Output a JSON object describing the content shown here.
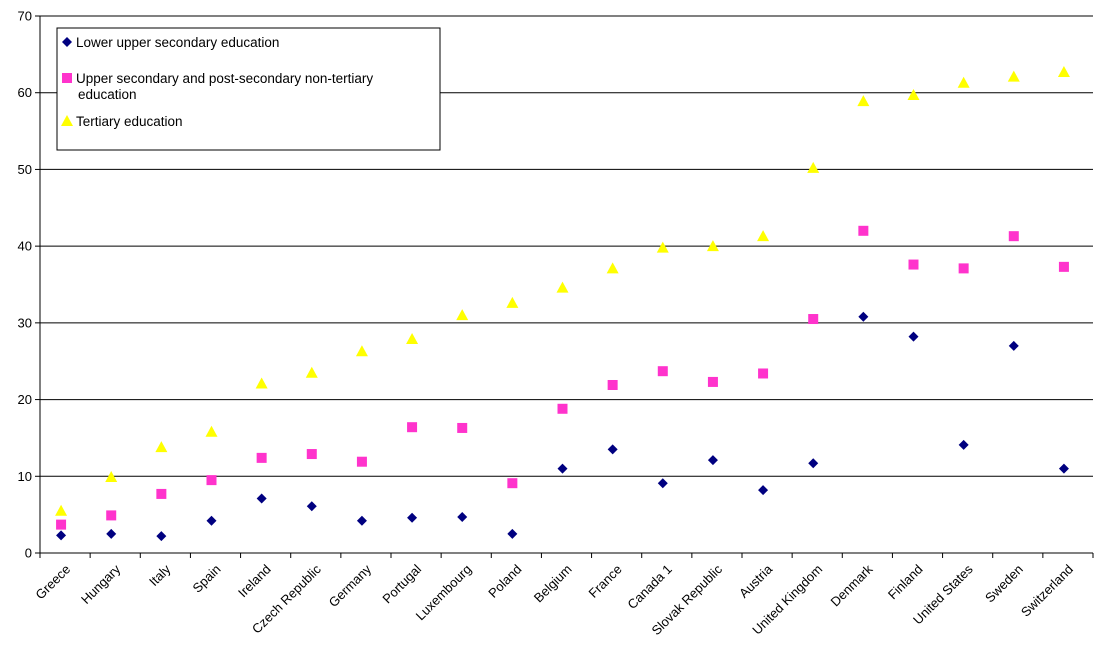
{
  "chart_data": {
    "type": "scatter",
    "title": "",
    "xlabel": "",
    "ylabel": "",
    "ylim": [
      0,
      70
    ],
    "yticks": [
      0,
      10,
      20,
      30,
      40,
      50,
      60,
      70
    ],
    "grid": "horizontal",
    "legend_position": "top-left",
    "categories": [
      "Greece",
      "Hungary",
      "Italy",
      "Spain",
      "Ireland",
      "Czech Republic",
      "Germany",
      "Portugal",
      "Luxembourg",
      "Poland",
      "Belgium",
      "France",
      "Canada 1",
      "Slovak Republic",
      "Austria",
      "United Kingdom",
      "Denmark",
      "Finland",
      "United States",
      "Sweden",
      "Switzerland"
    ],
    "series": [
      {
        "name": "Lower upper secondary education",
        "legend_lines": [
          "Lower upper secondary education"
        ],
        "marker": "diamond",
        "color": "#000080",
        "values": [
          2.3,
          2.5,
          2.2,
          4.2,
          7.1,
          6.1,
          4.2,
          4.6,
          4.7,
          2.5,
          11.0,
          13.5,
          9.1,
          12.1,
          8.2,
          11.7,
          30.8,
          28.2,
          14.1,
          27.0,
          11.0
        ]
      },
      {
        "name": "Upper secondary and post-secondary non-tertiary education",
        "legend_lines": [
          "Upper secondary and post-secondary non-tertiary",
          "education"
        ],
        "marker": "square",
        "color": "#ff33cc",
        "values": [
          3.7,
          4.9,
          7.7,
          9.5,
          12.4,
          12.9,
          11.9,
          16.4,
          16.3,
          9.1,
          18.8,
          21.9,
          23.7,
          22.3,
          23.4,
          30.5,
          42.0,
          37.6,
          37.1,
          41.3,
          37.3
        ]
      },
      {
        "name": "Tertiary education",
        "legend_lines": [
          "Tertiary education"
        ],
        "marker": "triangle",
        "color": "#ffff00",
        "values": [
          5.5,
          9.9,
          13.8,
          15.8,
          22.1,
          23.5,
          26.3,
          27.9,
          31.0,
          32.6,
          34.6,
          37.1,
          39.8,
          40.0,
          41.3,
          50.2,
          58.9,
          59.7,
          61.3,
          62.1,
          62.7
        ]
      }
    ]
  }
}
